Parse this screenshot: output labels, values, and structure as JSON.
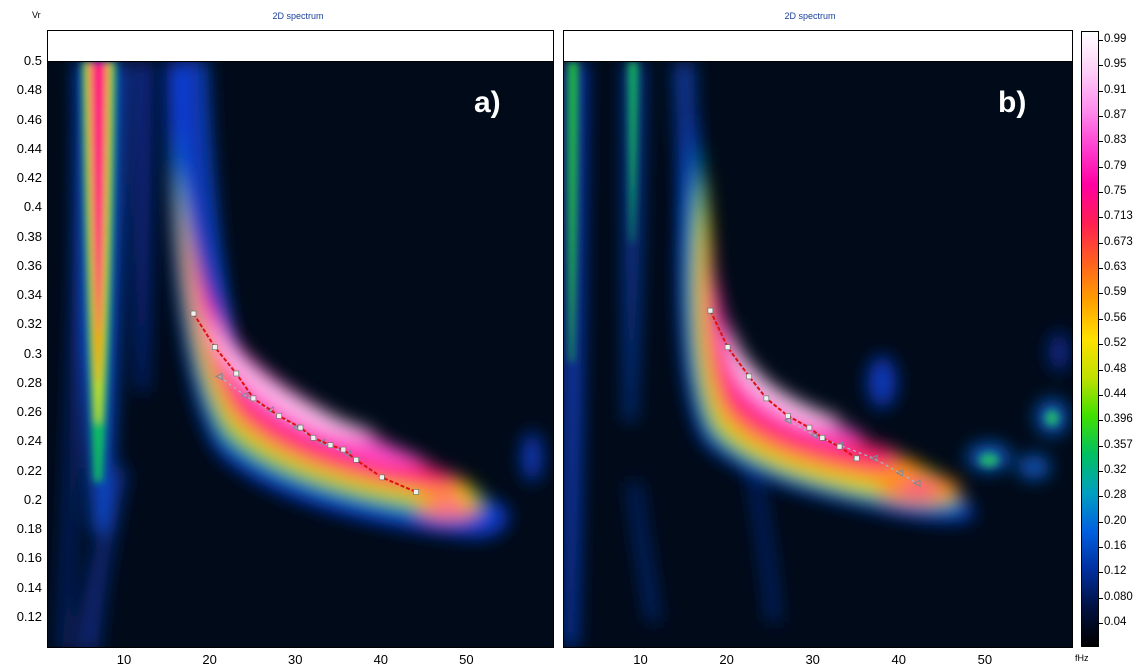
{
  "panels": [
    {
      "id": "a",
      "title": "2D spectrum",
      "label": "a)"
    },
    {
      "id": "b",
      "title": "2D spectrum",
      "label": "b)"
    }
  ],
  "axes": {
    "y_unit": "Vr",
    "x_unit": "fHz",
    "y_ticks": [
      "0.5",
      "0.48",
      "0.46",
      "0.44",
      "0.42",
      "0.4",
      "0.38",
      "0.36",
      "0.34",
      "0.32",
      "0.3",
      "0.28",
      "0.26",
      "0.24",
      "0.22",
      "0.2",
      "0.18",
      "0.16",
      "0.14",
      "0.12"
    ],
    "x_ticks": [
      "10",
      "20",
      "30",
      "40",
      "50"
    ]
  },
  "colorbar": {
    "ticks": [
      "0.99",
      "0.95",
      "0.91",
      "0.87",
      "0.83",
      "0.79",
      "0.75",
      "0.713",
      "0.673",
      "0.63",
      "0.59",
      "0.56",
      "0.52",
      "0.48",
      "0.44",
      "0.396",
      "0.357",
      "0.32",
      "0.28",
      "0.20",
      "0.16",
      "0.12",
      "0.080",
      "0.04"
    ],
    "colors": [
      "#000000",
      "#001040",
      "#0030a0",
      "#0060e0",
      "#00a0c0",
      "#00c060",
      "#40e000",
      "#c0e000",
      "#ffe000",
      "#ffa000",
      "#ff6020",
      "#ff2050",
      "#ff00a0",
      "#ff40d0",
      "#ff90ee",
      "#ffd0f8",
      "#ffffff"
    ]
  },
  "chart_data": [
    {
      "type": "heatmap",
      "title": "2D spectrum",
      "xlabel": "fHz",
      "ylabel": "Vr",
      "xlim": [
        1,
        60
      ],
      "ylim": [
        0.1,
        0.5
      ],
      "picked_curve": [
        {
          "x": 18,
          "y": 0.328
        },
        {
          "x": 20.5,
          "y": 0.305
        },
        {
          "x": 23,
          "y": 0.287
        },
        {
          "x": 25,
          "y": 0.27
        },
        {
          "x": 28,
          "y": 0.258
        },
        {
          "x": 30.5,
          "y": 0.25
        },
        {
          "x": 32,
          "y": 0.243
        },
        {
          "x": 34,
          "y": 0.238
        },
        {
          "x": 35.5,
          "y": 0.235
        },
        {
          "x": 37,
          "y": 0.228
        },
        {
          "x": 40,
          "y": 0.216
        },
        {
          "x": 44,
          "y": 0.206
        }
      ],
      "secondary_curve": [
        {
          "x": 21,
          "y": 0.285
        },
        {
          "x": 24,
          "y": 0.272
        },
        {
          "x": 27,
          "y": 0.262
        },
        {
          "x": 30,
          "y": 0.25
        },
        {
          "x": 33,
          "y": 0.24
        },
        {
          "x": 36,
          "y": 0.232
        }
      ]
    },
    {
      "type": "heatmap",
      "title": "2D spectrum",
      "xlabel": "fHz",
      "ylabel": "Vr",
      "xlim": [
        1,
        60
      ],
      "ylim": [
        0.1,
        0.5
      ],
      "picked_curve": [
        {
          "x": 18,
          "y": 0.33
        },
        {
          "x": 20,
          "y": 0.305
        },
        {
          "x": 22.5,
          "y": 0.285
        },
        {
          "x": 24.5,
          "y": 0.27
        },
        {
          "x": 27,
          "y": 0.258
        },
        {
          "x": 29.5,
          "y": 0.25
        },
        {
          "x": 31,
          "y": 0.243
        },
        {
          "x": 33,
          "y": 0.237
        },
        {
          "x": 35,
          "y": 0.229
        }
      ],
      "secondary_curve": [
        {
          "x": 27,
          "y": 0.255
        },
        {
          "x": 30,
          "y": 0.245
        },
        {
          "x": 33,
          "y": 0.238
        },
        {
          "x": 37,
          "y": 0.229
        },
        {
          "x": 40,
          "y": 0.219
        },
        {
          "x": 42,
          "y": 0.212
        }
      ]
    }
  ]
}
